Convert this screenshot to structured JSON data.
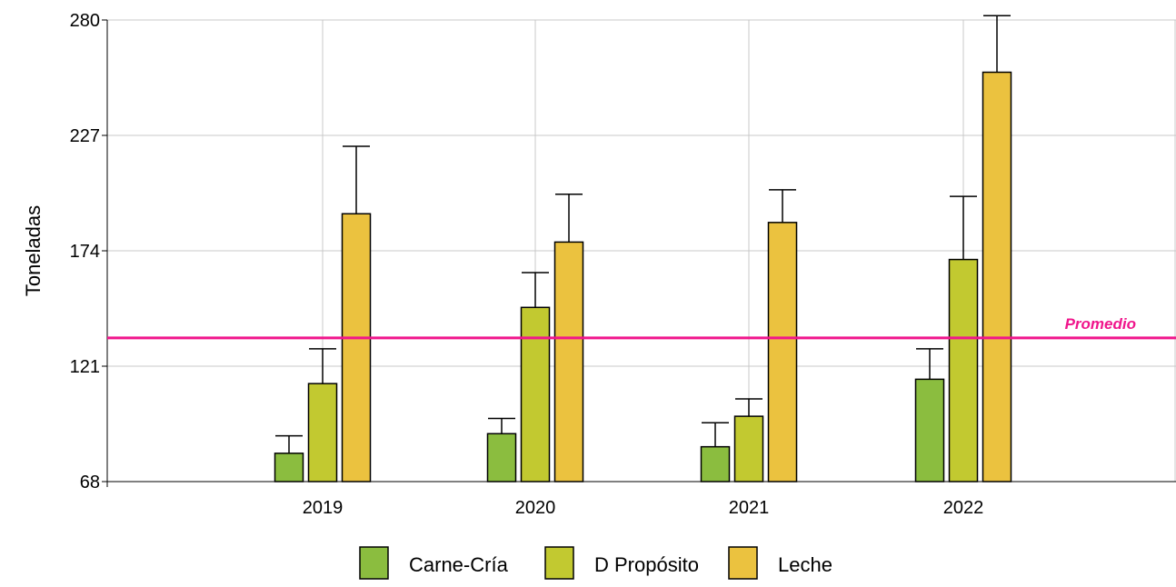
{
  "chart_data": {
    "type": "bar",
    "title": "",
    "xlabel": "",
    "ylabel": "Toneladas",
    "ylim": [
      68,
      280
    ],
    "yticks": [
      "68",
      "121",
      "174",
      "227",
      "280"
    ],
    "grid": true,
    "categories": [
      "2019",
      "2020",
      "2021",
      "2022"
    ],
    "series": [
      {
        "name": "Carne-Cría",
        "color": "#8bbd3f",
        "values": [
          81,
          90,
          84,
          115
        ],
        "error_upper": [
          89,
          97,
          95,
          129
        ]
      },
      {
        "name": "D Propósito",
        "color": "#c2c930",
        "values": [
          113,
          148,
          98,
          170
        ],
        "error_upper": [
          129,
          164,
          106,
          199
        ]
      },
      {
        "name": "Leche",
        "color": "#ebc23f",
        "values": [
          191,
          178,
          187,
          256
        ],
        "error_upper": [
          222,
          200,
          202,
          282
        ]
      }
    ],
    "reference_line": {
      "label": "Promedio",
      "value": 134,
      "color": "#f0168c"
    },
    "legend_position": "bottom"
  }
}
